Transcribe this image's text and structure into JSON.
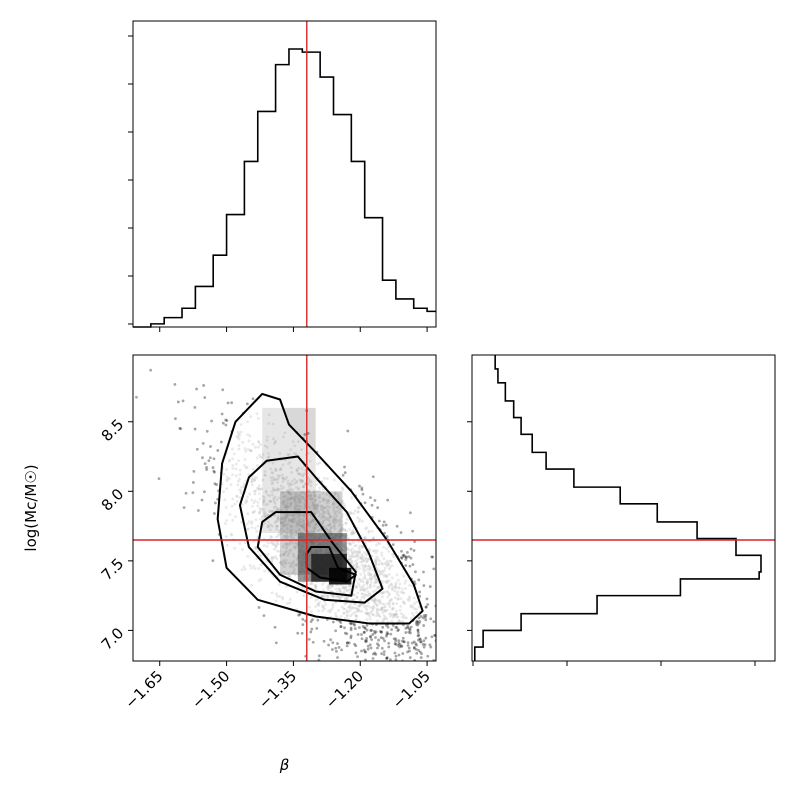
{
  "chart_data": [
    {
      "panel": "beta-histogram",
      "type": "histogram",
      "x_range": [
        -1.71,
        -1.03
      ],
      "bins": [
        {
          "x0": -1.71,
          "x1": -1.67,
          "count": 0
        },
        {
          "x0": -1.67,
          "x1": -1.64,
          "count": 1
        },
        {
          "x0": -1.64,
          "x1": -1.6,
          "count": 3
        },
        {
          "x0": -1.6,
          "x1": -1.57,
          "count": 6
        },
        {
          "x0": -1.57,
          "x1": -1.53,
          "count": 13
        },
        {
          "x0": -1.53,
          "x1": -1.5,
          "count": 23
        },
        {
          "x0": -1.5,
          "x1": -1.46,
          "count": 36
        },
        {
          "x0": -1.46,
          "x1": -1.43,
          "count": 53
        },
        {
          "x0": -1.43,
          "x1": -1.39,
          "count": 69
        },
        {
          "x0": -1.39,
          "x1": -1.36,
          "count": 84
        },
        {
          "x0": -1.36,
          "x1": -1.33,
          "count": 89
        },
        {
          "x0": -1.33,
          "x1": -1.29,
          "count": 88
        },
        {
          "x0": -1.29,
          "x1": -1.26,
          "count": 80
        },
        {
          "x0": -1.26,
          "x1": -1.22,
          "count": 68
        },
        {
          "x0": -1.22,
          "x1": -1.19,
          "count": 53
        },
        {
          "x0": -1.19,
          "x1": -1.15,
          "count": 35
        },
        {
          "x0": -1.15,
          "x1": -1.12,
          "count": 15
        },
        {
          "x0": -1.12,
          "x1": -1.08,
          "count": 9
        },
        {
          "x0": -1.08,
          "x1": -1.05,
          "count": 6
        },
        {
          "x0": -1.05,
          "x1": -1.03,
          "count": 5
        }
      ],
      "truth_line_x": -1.32,
      "truth_color": "#d62728"
    },
    {
      "panel": "joint-density",
      "type": "scatter-contour",
      "xlabel": "β",
      "ylabel": "log(Mc/M☉)",
      "x_range": [
        -1.71,
        -1.03
      ],
      "y_range": [
        6.78,
        8.98
      ],
      "x_ticks": [
        "−1.65",
        "−1.50",
        "−1.35",
        "−1.20",
        "−1.05"
      ],
      "x_tick_values": [
        -1.65,
        -1.5,
        -1.35,
        -1.2,
        -1.05
      ],
      "y_ticks": [
        "7.0",
        "7.5",
        "8.0",
        "8.5"
      ],
      "y_tick_values": [
        7.0,
        7.5,
        8.0,
        8.5
      ],
      "contours": [
        [
          [
            -1.42,
            8.7
          ],
          [
            -1.38,
            8.66
          ],
          [
            -1.36,
            8.48
          ],
          [
            -1.3,
            8.28
          ],
          [
            -1.22,
            8.0
          ],
          [
            -1.14,
            7.65
          ],
          [
            -1.08,
            7.33
          ],
          [
            -1.06,
            7.14
          ],
          [
            -1.09,
            7.05
          ],
          [
            -1.18,
            7.05
          ],
          [
            -1.3,
            7.1
          ],
          [
            -1.43,
            7.22
          ],
          [
            -1.5,
            7.45
          ],
          [
            -1.52,
            7.8
          ],
          [
            -1.51,
            8.2
          ],
          [
            -1.48,
            8.5
          ]
        ],
        [
          [
            -1.41,
            8.22
          ],
          [
            -1.34,
            8.25
          ],
          [
            -1.3,
            8.1
          ],
          [
            -1.23,
            7.85
          ],
          [
            -1.18,
            7.55
          ],
          [
            -1.15,
            7.3
          ],
          [
            -1.19,
            7.2
          ],
          [
            -1.28,
            7.22
          ],
          [
            -1.38,
            7.35
          ],
          [
            -1.45,
            7.6
          ],
          [
            -1.47,
            7.9
          ],
          [
            -1.45,
            8.1
          ]
        ],
        [
          [
            -1.39,
            7.85
          ],
          [
            -1.31,
            7.85
          ],
          [
            -1.26,
            7.62
          ],
          [
            -1.21,
            7.42
          ],
          [
            -1.22,
            7.25
          ],
          [
            -1.3,
            7.28
          ],
          [
            -1.38,
            7.4
          ],
          [
            -1.43,
            7.6
          ],
          [
            -1.42,
            7.78
          ]
        ],
        [
          [
            -1.31,
            7.6
          ],
          [
            -1.27,
            7.6
          ],
          [
            -1.25,
            7.45
          ],
          [
            -1.21,
            7.4
          ],
          [
            -1.23,
            7.35
          ],
          [
            -1.29,
            7.38
          ],
          [
            -1.32,
            7.45
          ],
          [
            -1.32,
            7.55
          ]
        ]
      ],
      "truth_point": {
        "x": -1.32,
        "y": 7.65
      },
      "truth_color": "#d62728"
    },
    {
      "panel": "mass-histogram",
      "type": "histogram",
      "orientation": "horizontal",
      "y_range": [
        6.78,
        8.98
      ],
      "bins": [
        {
          "y0": 6.78,
          "y1": 6.88,
          "count": 3
        },
        {
          "y0": 6.88,
          "y1": 7.0,
          "count": 12
        },
        {
          "y0": 7.0,
          "y1": 7.12,
          "count": 53
        },
        {
          "y0": 7.12,
          "y1": 7.25,
          "count": 135
        },
        {
          "y0": 7.25,
          "y1": 7.37,
          "count": 225
        },
        {
          "y0": 7.37,
          "y1": 7.42,
          "count": 310
        },
        {
          "y0": 7.42,
          "y1": 7.54,
          "count": 312
        },
        {
          "y0": 7.54,
          "y1": 7.66,
          "count": 285
        },
        {
          "y0": 7.66,
          "y1": 7.78,
          "count": 243
        },
        {
          "y0": 7.78,
          "y1": 7.91,
          "count": 200
        },
        {
          "y0": 7.91,
          "y1": 8.03,
          "count": 160
        },
        {
          "y0": 8.03,
          "y1": 8.16,
          "count": 110
        },
        {
          "y0": 8.16,
          "y1": 8.28,
          "count": 80
        },
        {
          "y0": 8.28,
          "y1": 8.41,
          "count": 65
        },
        {
          "y0": 8.41,
          "y1": 8.53,
          "count": 53
        },
        {
          "y0": 8.53,
          "y1": 8.65,
          "count": 45
        },
        {
          "y0": 8.65,
          "y1": 8.78,
          "count": 36
        },
        {
          "y0": 8.78,
          "y1": 8.88,
          "count": 28
        },
        {
          "y0": 8.88,
          "y1": 8.98,
          "count": 25
        }
      ],
      "truth_line_y": 7.65,
      "truth_color": "#d62728"
    }
  ]
}
